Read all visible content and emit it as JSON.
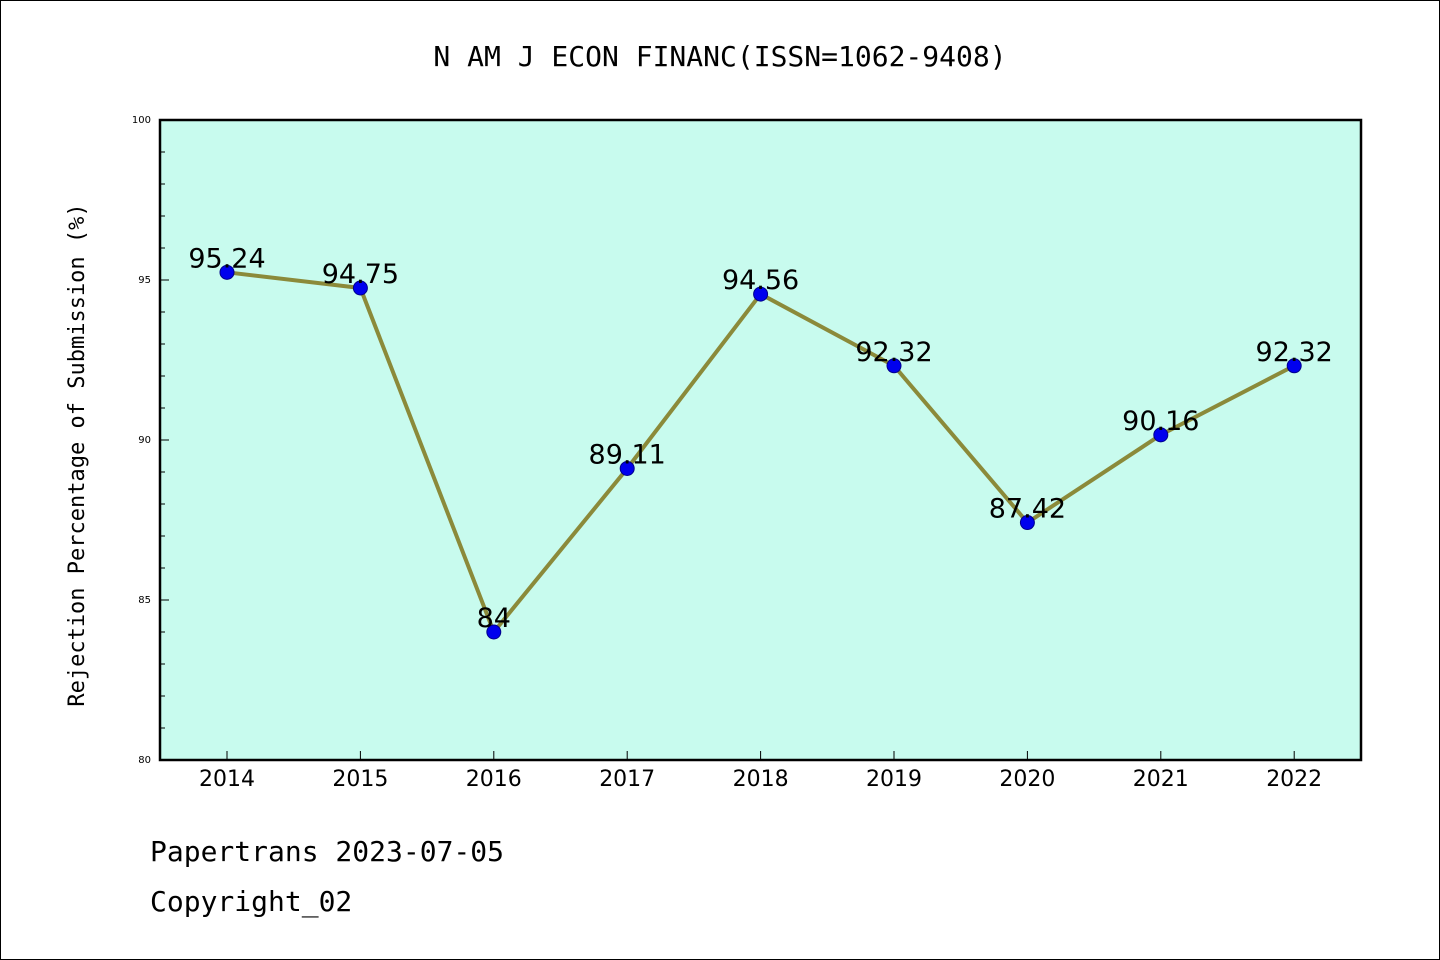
{
  "chart_data": {
    "type": "line",
    "title": "N AM J ECON FINANC(ISSN=1062-9408)",
    "xlabel": "",
    "ylabel": "Rejection Percentage of Submission (%)",
    "categories": [
      "2014",
      "2015",
      "2016",
      "2017",
      "2018",
      "2019",
      "2020",
      "2021",
      "2022"
    ],
    "values": [
      95.24,
      94.75,
      84,
      89.11,
      94.56,
      92.32,
      87.42,
      90.16,
      92.32
    ],
    "value_labels": [
      "95.24",
      "94.75",
      "84",
      "89.11",
      "94.56",
      "92.32",
      "87.42",
      "90.16",
      "92.32"
    ],
    "ylim": [
      80,
      100
    ],
    "yticks": [
      80,
      85,
      90,
      95,
      100
    ],
    "ytick_labels": [
      "80",
      "85",
      "90",
      "95",
      "100"
    ],
    "grid": false,
    "legend": "none",
    "colors": {
      "plot_background": "#c8fbee",
      "line": "#8b8a3a",
      "marker": "#0000ee"
    }
  },
  "footer": {
    "source": "Papertrans 2023-07-05",
    "copyright": "Copyright_02"
  }
}
